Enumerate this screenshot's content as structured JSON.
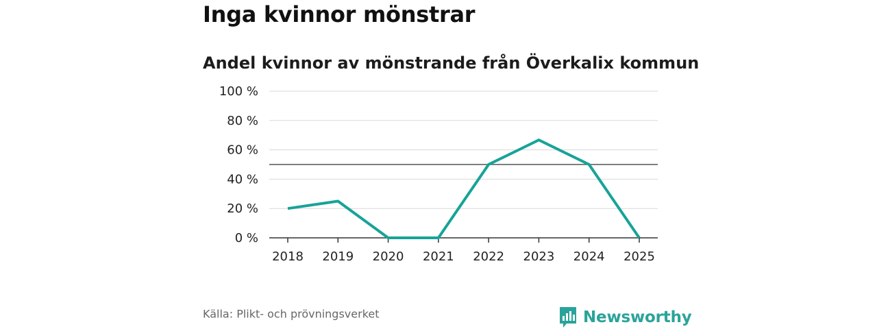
{
  "header": {
    "title": "Inga kvinnor mönstrar",
    "subtitle": "Andel kvinnor av mönstrande från Överkalix kommun"
  },
  "footer": {
    "source": "Källa: Plikt- och prövningsverket",
    "brand": "Newsworthy"
  },
  "colors": {
    "line": "#17a398",
    "reference_line": "#555555",
    "grid": "#d9d9d9",
    "brand": "#2aa39b"
  },
  "chart_data": {
    "type": "line",
    "title": "",
    "xlabel": "",
    "ylabel": "",
    "categories": [
      "2018",
      "2019",
      "2020",
      "2021",
      "2022",
      "2023",
      "2024",
      "2025"
    ],
    "series": [
      {
        "values": [
          20,
          25,
          0,
          0,
          50,
          66.7,
          50,
          0
        ]
      }
    ],
    "ylim": [
      0,
      100
    ],
    "yticks": [
      0,
      20,
      40,
      60,
      80,
      100
    ],
    "ytick_labels": [
      "0 %",
      "20 %",
      "40 %",
      "60 %",
      "80 %",
      "100 %"
    ],
    "reference_line": 50,
    "grid": true
  }
}
